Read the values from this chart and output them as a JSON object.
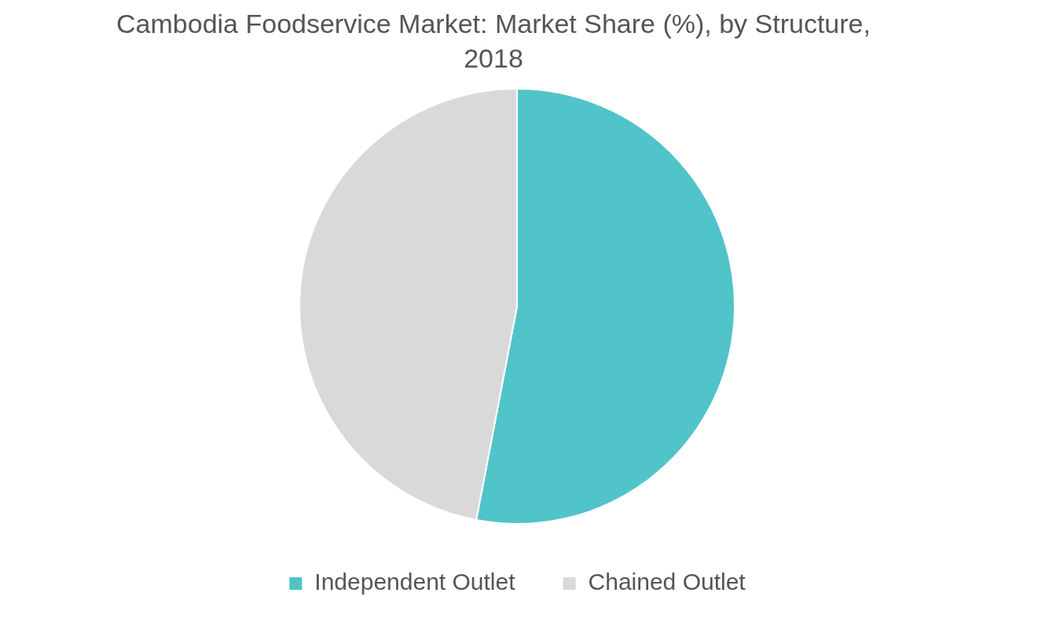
{
  "chart_data": {
    "type": "pie",
    "title": "Cambodia Foodservice Market: Market Share (%), by Structure, 2018",
    "categories": [
      "Independent Outlet",
      "Chained Outlet"
    ],
    "values": [
      53,
      47
    ],
    "colors": [
      "#50c4c9",
      "#d9d9d9"
    ],
    "legend": "bottom"
  }
}
